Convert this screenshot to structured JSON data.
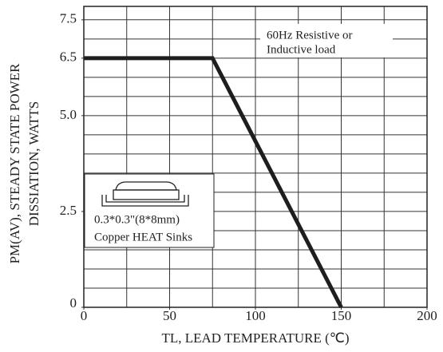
{
  "chart_data": {
    "type": "line",
    "x_label": "TL, LEAD TEMPERATURE (℃)",
    "y_label": [
      "PM(AV), STEADY STATE POWER",
      "DISSIATION, WATTS"
    ],
    "annotations": [
      "60Hz Resistive or",
      "Inductive load",
      "0.3*0.3\"(8*8mm)",
      "Copper HEAT Sinks"
    ],
    "x": [
      0,
      75,
      150
    ],
    "series": [
      {
        "color": "#1e1e1e",
        "values": [
          6.5,
          6.5,
          0
        ]
      }
    ],
    "xlim": [
      0,
      200
    ],
    "xticks": [
      0,
      50,
      100,
      150,
      200
    ],
    "ylim": [
      0,
      7.85
    ],
    "yticks": [
      0,
      2.5,
      {
        "value": 5,
        "label": "5.0"
      },
      6.5,
      7.5
    ],
    "grid": true,
    "xgrid": [
      25,
      50,
      75,
      100,
      125,
      150,
      175
    ],
    "ygrid": [
      0.5,
      1,
      1.5,
      2,
      2.5,
      3,
      3.5,
      4,
      4.5,
      5,
      5.5,
      6,
      6.5,
      7,
      7.5
    ]
  }
}
